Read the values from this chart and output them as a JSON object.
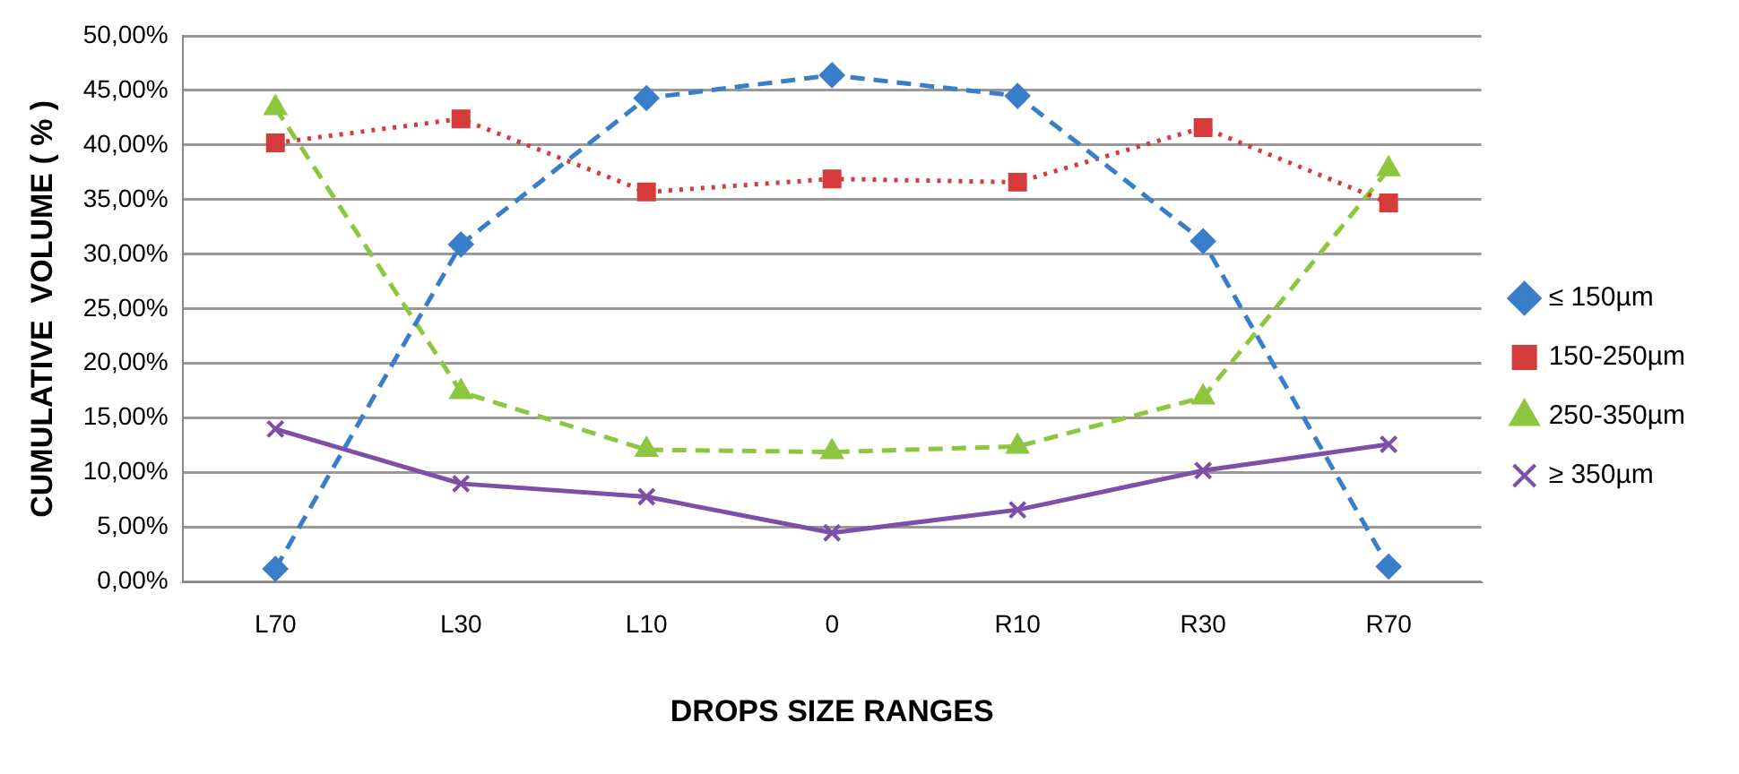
{
  "chart_data": {
    "type": "line",
    "xlabel": "DROPS SIZE RANGES",
    "ylabel": "CUMULATIVE  VOLUME ( % )",
    "categories": [
      "L70",
      "L30",
      "L10",
      "0",
      "R10",
      "R30",
      "R70"
    ],
    "series": [
      {
        "name": "≤ 150µm",
        "color": "#3a7dc9",
        "marker": "diamond",
        "line_style": "dashed",
        "values": [
          1.2,
          30.9,
          44.3,
          46.4,
          44.5,
          31.2,
          1.4
        ]
      },
      {
        "name": "150-250µm",
        "color": "#d63b3b",
        "marker": "square",
        "line_style": "dotted",
        "values": [
          40.2,
          42.4,
          35.7,
          36.9,
          36.6,
          41.6,
          34.7
        ]
      },
      {
        "name": "250-350µm",
        "color": "#8dc63f",
        "marker": "triangle",
        "line_style": "dashed",
        "values": [
          43.4,
          17.4,
          12.1,
          11.9,
          12.4,
          16.9,
          37.8
        ]
      },
      {
        "name": "≥ 350µm",
        "color": "#7e4fa8",
        "marker": "cross",
        "line_style": "solid",
        "values": [
          14.0,
          9.0,
          7.8,
          4.5,
          6.6,
          10.2,
          12.6
        ]
      }
    ],
    "ylim": [
      0,
      50
    ],
    "yticks": [
      {
        "value": 0,
        "label": "0,00%"
      },
      {
        "value": 5,
        "label": "5,00%"
      },
      {
        "value": 10,
        "label": "10,00%"
      },
      {
        "value": 15,
        "label": "15,00%"
      },
      {
        "value": 20,
        "label": "20,00%"
      },
      {
        "value": 25,
        "label": "25,00%"
      },
      {
        "value": 30,
        "label": "30,00%"
      },
      {
        "value": 35,
        "label": "35,00%"
      },
      {
        "value": 40,
        "label": "40,00%"
      },
      {
        "value": 45,
        "label": "45,00%"
      },
      {
        "value": 50,
        "label": "50,00%"
      }
    ],
    "grid": "y",
    "legend": "right"
  }
}
